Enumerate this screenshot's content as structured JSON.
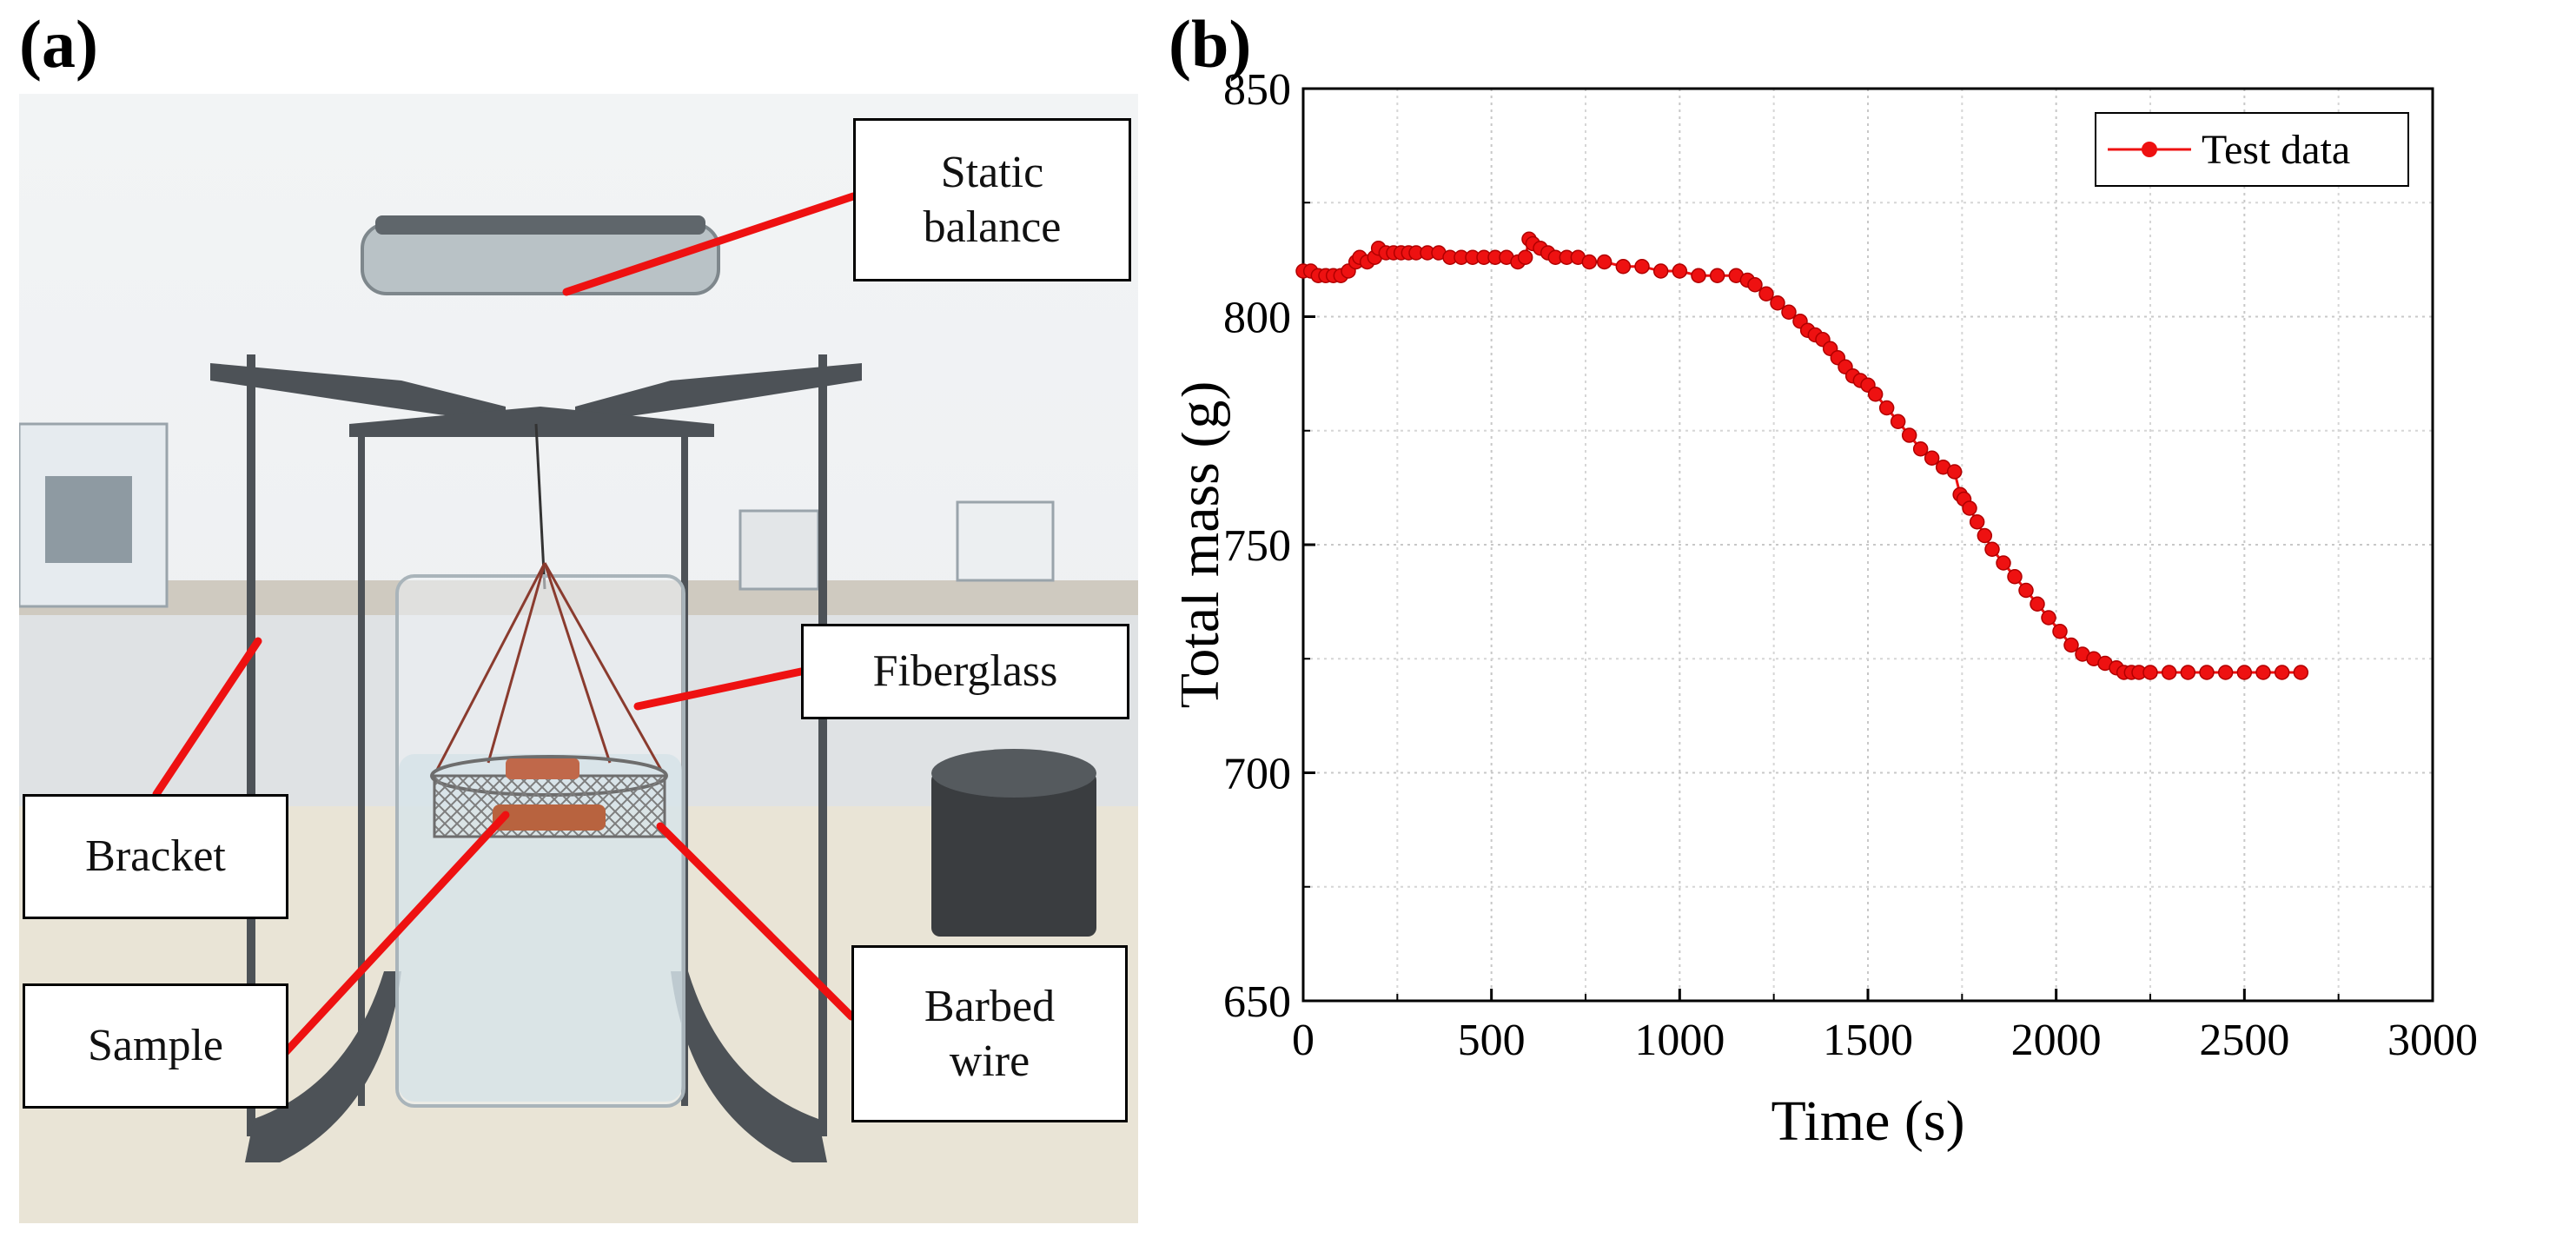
{
  "panels": {
    "a_label": "(a)",
    "b_label": "(b)"
  },
  "photo": {
    "callouts": {
      "static_balance": "Static\nbalance",
      "fiberglass": "Fiberglass",
      "bracket": "Bracket",
      "sample": "Sample",
      "barbed_wire": "Barbed\nwire"
    },
    "colors": {
      "callout_line": "#ee1111",
      "bracket": "#4d5257",
      "balance": "#b9c2c6"
    }
  },
  "chart_data": {
    "type": "scatter",
    "title": "",
    "xlabel": "Time (s)",
    "ylabel": "Total mass (g)",
    "xlim": [
      0,
      3000
    ],
    "ylim": [
      650,
      850
    ],
    "xticks": [
      "0",
      "500",
      "1000",
      "1500",
      "2000",
      "2500",
      "3000"
    ],
    "yticks": [
      "650",
      "700",
      "750",
      "800",
      "850"
    ],
    "grid": true,
    "legend": {
      "position": "top-right",
      "entries": [
        "Test data"
      ]
    },
    "series": [
      {
        "name": "Test data",
        "color": "#ee1111",
        "x": [
          0,
          20,
          40,
          60,
          80,
          100,
          120,
          140,
          150,
          170,
          190,
          200,
          220,
          240,
          260,
          280,
          300,
          330,
          360,
          390,
          420,
          450,
          480,
          510,
          540,
          570,
          590,
          600,
          610,
          630,
          650,
          670,
          700,
          730,
          760,
          800,
          850,
          900,
          950,
          1000,
          1050,
          1100,
          1150,
          1180,
          1200,
          1230,
          1260,
          1290,
          1320,
          1340,
          1360,
          1380,
          1400,
          1420,
          1440,
          1460,
          1480,
          1500,
          1520,
          1550,
          1580,
          1610,
          1640,
          1670,
          1700,
          1730,
          1745,
          1755,
          1770,
          1790,
          1810,
          1830,
          1860,
          1890,
          1920,
          1950,
          1980,
          2010,
          2040,
          2070,
          2100,
          2130,
          2160,
          2180,
          2200,
          2220,
          2250,
          2300,
          2350,
          2400,
          2450,
          2500,
          2550,
          2600,
          2650
        ],
        "y": [
          810,
          810,
          809,
          809,
          809,
          809,
          810,
          812,
          813,
          812,
          813,
          815,
          814,
          814,
          814,
          814,
          814,
          814,
          814,
          813,
          813,
          813,
          813,
          813,
          813,
          812,
          813,
          817,
          816,
          815,
          814,
          813,
          813,
          813,
          812,
          812,
          811,
          811,
          810,
          810,
          809,
          809,
          809,
          808,
          807,
          805,
          803,
          801,
          799,
          797,
          796,
          795,
          793,
          791,
          789,
          787,
          786,
          785,
          783,
          780,
          777,
          774,
          771,
          769,
          767,
          766,
          761,
          760,
          758,
          755,
          752,
          749,
          746,
          743,
          740,
          737,
          734,
          731,
          728,
          726,
          725,
          724,
          723,
          722,
          722,
          722,
          722,
          722,
          722,
          722,
          722,
          722,
          722,
          722,
          722
        ]
      }
    ]
  }
}
